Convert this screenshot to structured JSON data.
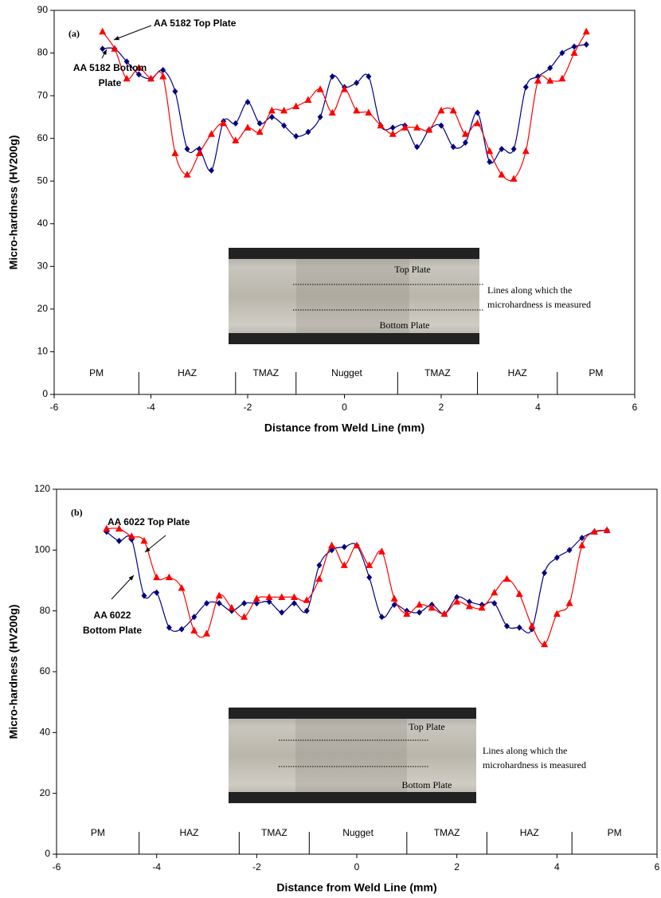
{
  "chart_data": [
    {
      "type": "line",
      "label": "(a)",
      "xlabel": "Distance from Weld Line (mm)",
      "ylabel": "Micro-hardness (HV200g)",
      "xlim": [
        -6,
        6
      ],
      "xticks": [
        -6,
        -4,
        -2,
        0,
        2,
        4,
        6
      ],
      "ylim": [
        0,
        90
      ],
      "yticks": [
        0,
        10,
        20,
        30,
        40,
        50,
        60,
        70,
        80,
        90
      ],
      "x": [
        -5,
        -4.75,
        -4.5,
        -4.25,
        -4,
        -3.75,
        -3.5,
        -3.25,
        -3,
        -2.75,
        -2.5,
        -2.25,
        -2,
        -1.75,
        -1.5,
        -1.25,
        -1,
        -0.75,
        -0.5,
        -0.25,
        0,
        0.25,
        0.5,
        0.75,
        1,
        1.25,
        1.5,
        1.75,
        2,
        2.25,
        2.5,
        2.75,
        3,
        3.25,
        3.5,
        3.75,
        4,
        4.25,
        4.5,
        4.75,
        5
      ],
      "series": [
        {
          "color": "#000080",
          "marker": "diamond",
          "values": [
            81,
            81,
            78,
            75,
            74,
            76,
            71,
            57.5,
            57.5,
            52.5,
            64,
            63.5,
            68.5,
            63.5,
            65,
            63,
            60.5,
            61.5,
            65,
            74.5,
            72,
            73,
            74.5,
            63,
            62.5,
            63,
            58,
            62,
            63,
            58,
            59,
            66,
            54.5,
            57.5,
            57.5,
            72,
            74.5,
            76.5,
            80,
            81.5,
            82
          ]
        },
        {
          "color": "#ff0000",
          "marker": "triangle",
          "values": [
            85,
            81,
            74,
            76.5,
            74,
            74.5,
            56.5,
            51.5,
            56.5,
            61,
            63.5,
            59.5,
            62.5,
            61.5,
            66.5,
            66.5,
            67.5,
            69,
            71.5,
            66,
            71.5,
            66.5,
            66,
            63,
            61,
            62.5,
            62.5,
            62,
            66.5,
            66.5,
            61,
            63.5,
            57,
            51.5,
            50.5,
            57,
            73.5,
            73.5,
            74,
            80,
            85
          ]
        }
      ],
      "zones": {
        "labels": [
          "PM",
          "HAZ",
          "TMAZ",
          "Nugget",
          "TMAZ",
          "HAZ",
          "PM"
        ],
        "bounds": [
          -4.25,
          -2.25,
          -1,
          1.1,
          2.75,
          4.4
        ]
      },
      "top_label": "AA 5182 Top Plate",
      "bottom_label": [
        "AA 5182 Bottom",
        "Plate"
      ],
      "inset": {
        "top": "Top Plate",
        "bottom": "Bottom Plate",
        "note": [
          "Lines along which the",
          "microhardness is measured"
        ]
      }
    },
    {
      "type": "line",
      "label": "(b)",
      "xlabel": "Distance from Weld Line (mm)",
      "ylabel": "Micro-hardness (HV200g)",
      "xlim": [
        -6,
        6
      ],
      "xticks": [
        -6,
        -4,
        -2,
        0,
        2,
        4,
        6
      ],
      "ylim": [
        0,
        120
      ],
      "yticks": [
        0,
        20,
        40,
        60,
        80,
        100,
        120
      ],
      "x": [
        -5,
        -4.75,
        -4.5,
        -4.25,
        -4,
        -3.75,
        -3.5,
        -3.25,
        -3,
        -2.75,
        -2.5,
        -2.25,
        -2,
        -1.75,
        -1.5,
        -1.25,
        -1,
        -0.75,
        -0.5,
        -0.25,
        0,
        0.25,
        0.5,
        0.75,
        1,
        1.25,
        1.5,
        1.75,
        2,
        2.25,
        2.5,
        2.75,
        3,
        3.25,
        3.5,
        3.75,
        4,
        4.25,
        4.5,
        4.75,
        5
      ],
      "series": [
        {
          "color": "#000080",
          "marker": "diamond",
          "values": [
            106,
            103,
            103.5,
            85,
            86,
            74.5,
            74,
            78,
            82.5,
            82.5,
            80,
            82.5,
            82.5,
            83,
            79.5,
            82.5,
            80,
            95,
            100,
            101,
            101.5,
            91,
            78,
            82,
            80,
            79.5,
            82,
            79,
            84.5,
            83,
            82,
            82.5,
            75,
            74.5,
            74,
            92.5,
            97.5,
            100,
            104,
            106,
            106.5
          ]
        },
        {
          "color": "#ff0000",
          "marker": "triangle",
          "values": [
            107,
            107,
            104.5,
            103,
            91,
            91,
            87.5,
            73.5,
            72.5,
            85,
            81,
            78,
            84,
            84.5,
            84.5,
            84.5,
            83.5,
            90.5,
            101.5,
            95,
            101.5,
            95,
            99.5,
            84,
            79,
            82,
            81,
            79,
            83,
            81.5,
            81,
            86,
            90.5,
            85.5,
            75,
            69,
            79,
            82.5,
            101.5,
            106,
            106.5
          ]
        }
      ],
      "zones": {
        "labels": [
          "PM",
          "HAZ",
          "TMAZ",
          "Nugget",
          "TMAZ",
          "HAZ",
          "PM"
        ],
        "bounds": [
          -4.35,
          -2.35,
          -0.95,
          1.0,
          2.6,
          4.3
        ]
      },
      "top_label": "AA 6022 Top Plate",
      "bottom_label": [
        "AA 6022",
        "Bottom Plate"
      ],
      "inset": {
        "top": "Top Plate",
        "bottom": "Bottom Plate",
        "note": [
          "Lines along which the",
          "microhardness is measured"
        ]
      }
    }
  ]
}
